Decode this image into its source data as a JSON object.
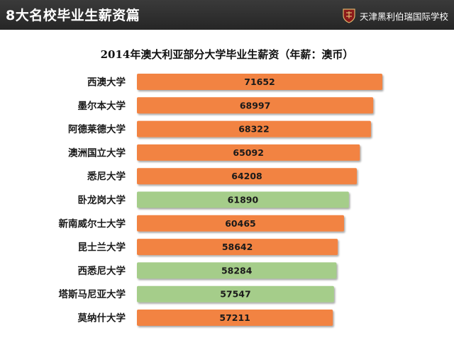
{
  "header": {
    "title": "8大名校毕业生薪资篇",
    "brand_name": "天津黑利伯瑞国际学校",
    "brand_icon": "school-crest-icon"
  },
  "colors": {
    "header_bg": "#2f2f2f",
    "bar_orange": "#f28342",
    "bar_green": "#a5cd8a"
  },
  "chart_data": {
    "type": "bar",
    "orientation": "horizontal",
    "title": "2014年澳大利亚部分大学毕业生薪资（年薪：澳币）",
    "categories": [
      "西澳大学",
      "墨尔本大学",
      "阿德莱德大学",
      "澳洲国立大学",
      "悉尼大学",
      "卧龙岗大学",
      "新南威尔士大学",
      "昆士兰大学",
      "西悉尼大学",
      "塔斯马尼亚大学",
      "莫纳什大学"
    ],
    "values": [
      71652,
      68997,
      68322,
      65092,
      64208,
      61890,
      60465,
      58642,
      58284,
      57547,
      57211
    ],
    "bar_colors": [
      "#f28342",
      "#f28342",
      "#f28342",
      "#f28342",
      "#f28342",
      "#a5cd8a",
      "#f28342",
      "#f28342",
      "#a5cd8a",
      "#a5cd8a",
      "#f28342"
    ],
    "data_labels": true,
    "grid": false,
    "legend": "none"
  }
}
